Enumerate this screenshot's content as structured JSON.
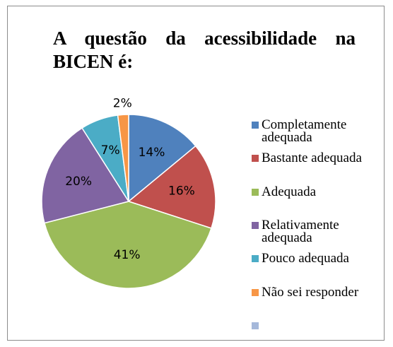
{
  "chart_data": {
    "type": "pie",
    "title": "A questão da acessibilidade na BICEN é:",
    "categories": [
      "Completamente adequada",
      "Bastante adequada",
      "Adequada",
      "Relativamente adequada",
      "Pouco adequada",
      "Não sei responder",
      null
    ],
    "values": [
      14,
      16,
      41,
      20,
      7,
      2,
      0
    ],
    "value_labels": [
      "14%",
      "16%",
      "41%",
      "20%",
      "7%",
      "2%",
      null
    ],
    "colors": [
      "#4f81bd",
      "#c0504d",
      "#9bbb59",
      "#8064a2",
      "#4bacc6",
      "#f79646",
      "#a5b8da"
    ],
    "legend": "right"
  }
}
